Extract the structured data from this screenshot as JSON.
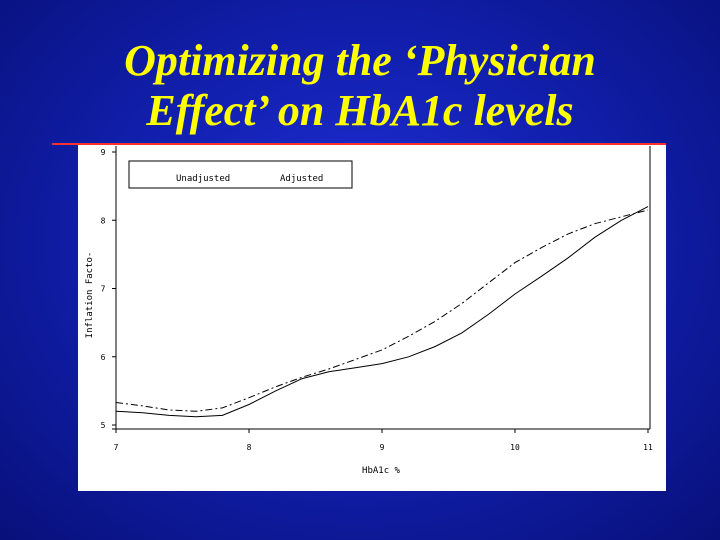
{
  "slide": {
    "title_line1": "Optimizing the ‘Physician",
    "title_line2": "Effect’ on HbA1c levels",
    "accent_color": "#ff3030",
    "title_color": "#ffff00"
  },
  "chart_data": {
    "type": "line",
    "title": "",
    "xlabel": "HbA1c %",
    "ylabel": "Inflation Facto-",
    "xlim": [
      7,
      11
    ],
    "ylim": [
      5,
      9
    ],
    "xticks": [
      "7",
      "8",
      "9",
      "10",
      "11"
    ],
    "yticks": [
      "5",
      "6",
      "7",
      "8",
      "9"
    ],
    "legend_position": "top-left",
    "grid": false,
    "series": [
      {
        "name": "Unadjusted",
        "style": "solid",
        "x": [
          7.0,
          7.2,
          7.4,
          7.6,
          7.8,
          8.0,
          8.2,
          8.4,
          8.6,
          8.8,
          9.0,
          9.2,
          9.4,
          9.6,
          9.8,
          10.0,
          10.2,
          10.4,
          10.6,
          10.8,
          11.0
        ],
        "y": [
          5.2,
          5.18,
          5.14,
          5.12,
          5.14,
          5.3,
          5.5,
          5.68,
          5.78,
          5.84,
          5.9,
          6.0,
          6.15,
          6.35,
          6.62,
          6.92,
          7.18,
          7.45,
          7.75,
          8.0,
          8.2
        ]
      },
      {
        "name": "Adjusted",
        "style": "dash-dot",
        "x": [
          7.0,
          7.2,
          7.4,
          7.6,
          7.8,
          8.0,
          8.2,
          8.4,
          8.6,
          8.8,
          9.0,
          9.2,
          9.4,
          9.6,
          9.8,
          10.0,
          10.2,
          10.4,
          10.6,
          10.8,
          11.0
        ],
        "y": [
          5.33,
          5.28,
          5.22,
          5.2,
          5.25,
          5.4,
          5.56,
          5.7,
          5.82,
          5.96,
          6.1,
          6.3,
          6.52,
          6.78,
          7.08,
          7.38,
          7.6,
          7.8,
          7.95,
          8.05,
          8.15
        ]
      }
    ]
  }
}
